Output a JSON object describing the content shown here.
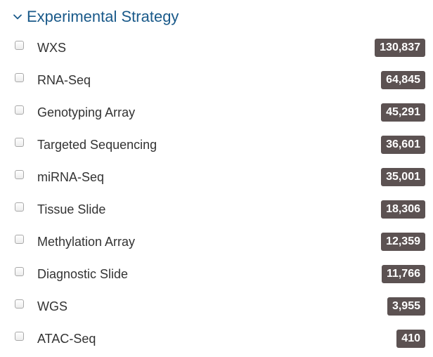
{
  "facet": {
    "title": "Experimental Strategy",
    "items": [
      {
        "label": "WXS",
        "count": "130,837"
      },
      {
        "label": "RNA-Seq",
        "count": "64,845"
      },
      {
        "label": "Genotyping Array",
        "count": "45,291"
      },
      {
        "label": "Targeted Sequencing",
        "count": "36,601"
      },
      {
        "label": "miRNA-Seq",
        "count": "35,001"
      },
      {
        "label": "Tissue Slide",
        "count": "18,306"
      },
      {
        "label": "Methylation Array",
        "count": "12,359"
      },
      {
        "label": "Diagnostic Slide",
        "count": "11,766"
      },
      {
        "label": "WGS",
        "count": "3,955"
      },
      {
        "label": "ATAC-Seq",
        "count": "410"
      }
    ]
  },
  "icons": {
    "collapse": "chevron-down-icon"
  },
  "colors": {
    "title": "#1a5a8a",
    "badge": "#5c5252",
    "label": "#333333"
  }
}
